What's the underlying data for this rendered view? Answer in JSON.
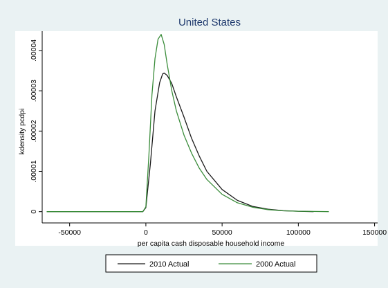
{
  "chart_data": {
    "type": "line",
    "title": "United States",
    "xlabel": "per capita cash disposable household income",
    "ylabel": "kdensity pcdpi",
    "xlim": [
      -68000,
      152000
    ],
    "ylim": [
      -2.8e-06,
      4.48e-05
    ],
    "x_ticks": [
      -50000,
      0,
      50000,
      100000,
      150000
    ],
    "x_tick_labels": [
      "-50000",
      "0",
      "50000",
      "100000",
      "150000"
    ],
    "y_ticks": [
      0,
      1e-05,
      2e-05,
      3e-05,
      4e-05
    ],
    "y_tick_labels": [
      "0",
      ".00001",
      ".00002",
      ".00003",
      ".00004"
    ],
    "grid": false,
    "legend_position": "bottom",
    "series": [
      {
        "name": "2010 Actual",
        "color": "#1a1a1a",
        "x": [
          -65000,
          -40000,
          -20000,
          -5000,
          -2000,
          0,
          3000,
          6000,
          9000,
          11000,
          12000,
          14000,
          17000,
          20000,
          25000,
          30000,
          35000,
          40000,
          50000,
          60000,
          70000,
          80000,
          90000,
          100000,
          110000
        ],
        "y": [
          0,
          0,
          0,
          0,
          0,
          1e-06,
          1.2e-05,
          2.5e-05,
          3.2e-05,
          3.42e-05,
          3.44e-05,
          3.38e-05,
          3.18e-05,
          2.85e-05,
          2.35e-05,
          1.82e-05,
          1.38e-05,
          1e-05,
          5.5e-06,
          2.8e-06,
          1.3e-06,
          6e-07,
          2.5e-07,
          1e-07,
          0.0
        ]
      },
      {
        "name": "2000 Actual",
        "color": "#3a8c3a",
        "x": [
          -65000,
          -40000,
          -20000,
          -5000,
          -2000,
          0,
          2000,
          4000,
          6000,
          8000,
          10000,
          12000,
          14000,
          17000,
          20000,
          25000,
          30000,
          35000,
          40000,
          50000,
          60000,
          70000,
          80000,
          90000,
          100000,
          110000,
          120000
        ],
        "y": [
          0,
          0,
          0,
          0,
          0,
          1.2e-06,
          1.4e-05,
          2.9e-05,
          3.8e-05,
          4.28e-05,
          4.4e-05,
          4.15e-05,
          3.65e-05,
          3e-05,
          2.5e-05,
          1.9e-05,
          1.45e-05,
          1.08e-05,
          8e-06,
          4.3e-06,
          2.2e-06,
          1.1e-06,
          5e-07,
          2e-07,
          1e-07,
          5e-08,
          0.0
        ]
      }
    ]
  }
}
